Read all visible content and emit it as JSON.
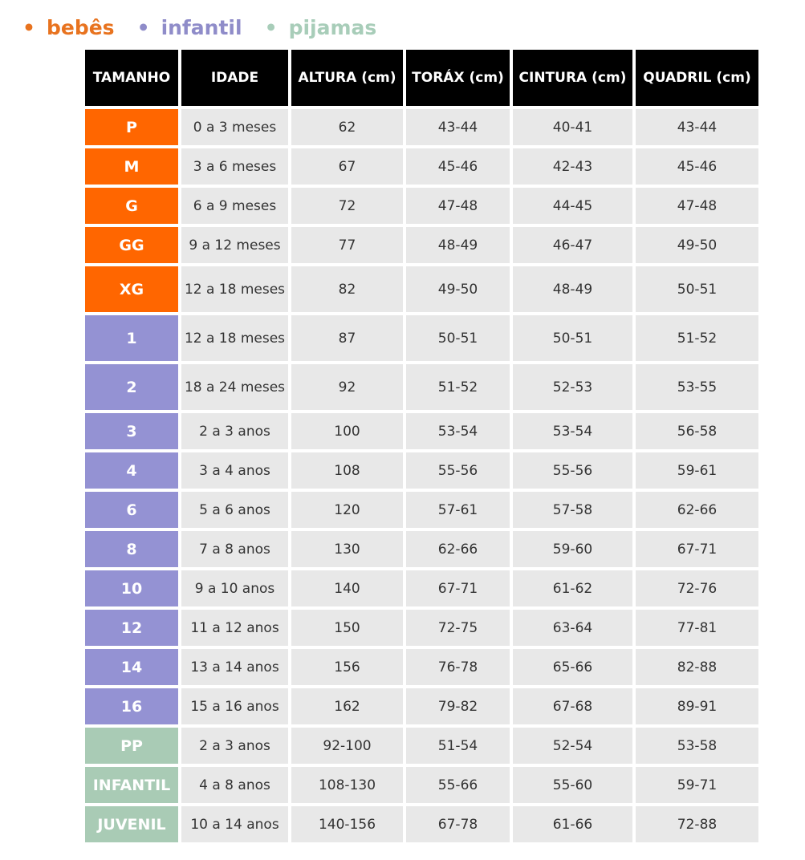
{
  "table": {
    "header": [
      "TAMANHO",
      "IDADE",
      "ALTURA (cm)",
      "TORÁX (cm)",
      "CINTURA (cm)",
      "QUADRIL (cm)"
    ],
    "groups": [
      {
        "name": "bebês",
        "rows": [
          [
            "P",
            "0 a 3 meses",
            "62",
            "43-44",
            "40-41",
            "43-44"
          ],
          [
            "M",
            "3 a 6 meses",
            "67",
            "45-46",
            "42-43",
            "45-46"
          ],
          [
            "G",
            "6 a 9 meses",
            "72",
            "47-48",
            "44-45",
            "47-48"
          ],
          [
            "GG",
            "9 a 12 meses",
            "77",
            "48-49",
            "46-47",
            "49-50"
          ],
          [
            "XG",
            "12 a 18 meses",
            "82",
            "49-50",
            "48-49",
            "50-51"
          ]
        ]
      },
      {
        "name": "infantil",
        "rows": [
          [
            "1",
            "12 a 18 meses",
            "87",
            "50-51",
            "50-51",
            "51-52"
          ],
          [
            "2",
            "18 a 24 meses",
            "92",
            "51-52",
            "52-53",
            "53-55"
          ],
          [
            "3",
            "2 a 3 anos",
            "100",
            "53-54",
            "53-54",
            "56-58"
          ],
          [
            "4",
            "3 a 4 anos",
            "108",
            "55-56",
            "55-56",
            "59-61"
          ],
          [
            "6",
            "5 a 6 anos",
            "120",
            "57-61",
            "57-58",
            "62-66"
          ],
          [
            "8",
            "7 a 8 anos",
            "130",
            "62-66",
            "59-60",
            "67-71"
          ],
          [
            "10",
            "9 a 10 anos",
            "140",
            "67-71",
            "61-62",
            "72-76"
          ],
          [
            "12",
            "11 a 12 anos",
            "150",
            "72-75",
            "63-64",
            "77-81"
          ],
          [
            "14",
            "13 a 14 anos",
            "156",
            "76-78",
            "65-66",
            "82-88"
          ],
          [
            "16",
            "15 a 16 anos",
            "162",
            "79-82",
            "67-68",
            "89-91"
          ]
        ]
      },
      {
        "name": "pijamas",
        "rows": [
          [
            "PP",
            "2 a 3 anos",
            "92-100",
            "51-54",
            "52-54",
            "53-58"
          ],
          [
            "INFANTIL",
            "4 a 8 anos",
            "108-130",
            "55-66",
            "55-60",
            "59-71"
          ],
          [
            "JUVENIL",
            "10 a 14 anos",
            "140-156",
            "67-78",
            "61-66",
            "72-88"
          ]
        ]
      }
    ]
  }
}
